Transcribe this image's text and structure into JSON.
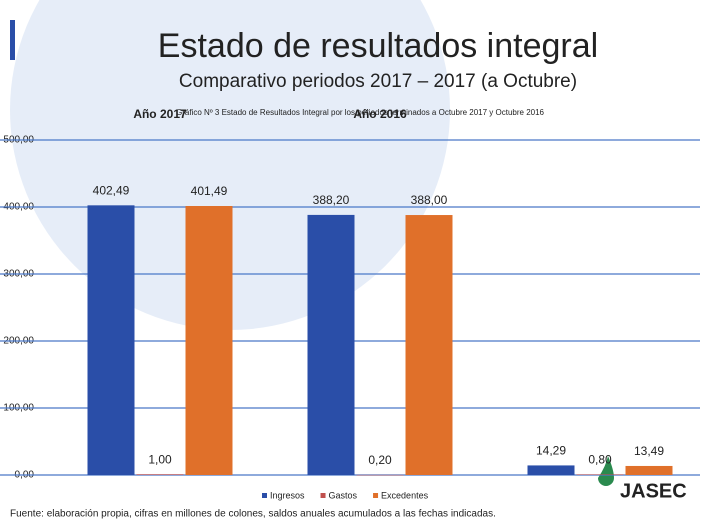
{
  "title": "Estado de resultados integral",
  "subtitle": "Comparativo periodos 2017 – 2017 (a Octubre)",
  "logo": "JASEC",
  "footer": "Fuente: elaboración propia, cifras en millones de colones, saldos anuales acumulados a las fechas indicadas.",
  "chart_data": {
    "type": "bar",
    "caption": "Gráfico Nº 3 Estado de Resultados Integral por los periodos terminados a Octubre 2017 y Octubre 2016",
    "categories": [
      "Año 2017",
      "Año 2016",
      null
    ],
    "series": [
      {
        "name": "Ingresos",
        "color": "#2a4ea8",
        "values": [
          402.49,
          388.2,
          14.29
        ],
        "value_labels": [
          "402,49",
          "388,20",
          "14,29"
        ]
      },
      {
        "name": "Gastos",
        "color": "#c0504d",
        "values": [
          1.0,
          0.2,
          0.8
        ],
        "value_labels": [
          "1,00",
          "0,20",
          "0,80"
        ]
      },
      {
        "name": "Excedentes",
        "color": "#e0702a",
        "values": [
          401.49,
          388.0,
          13.49
        ],
        "value_labels": [
          "401,49",
          "388,00",
          "13,49"
        ]
      }
    ],
    "ylim": [
      0,
      500
    ],
    "yticks": [
      {
        "value": 0,
        "label": "0,00"
      },
      {
        "value": 100,
        "label": "100,00"
      },
      {
        "value": 200,
        "label": "200,00"
      },
      {
        "value": 300,
        "label": "300,00"
      },
      {
        "value": 400,
        "label": "400,00"
      },
      {
        "value": 500,
        "label": "500,00"
      }
    ],
    "grid": true,
    "legend": "bottom"
  }
}
